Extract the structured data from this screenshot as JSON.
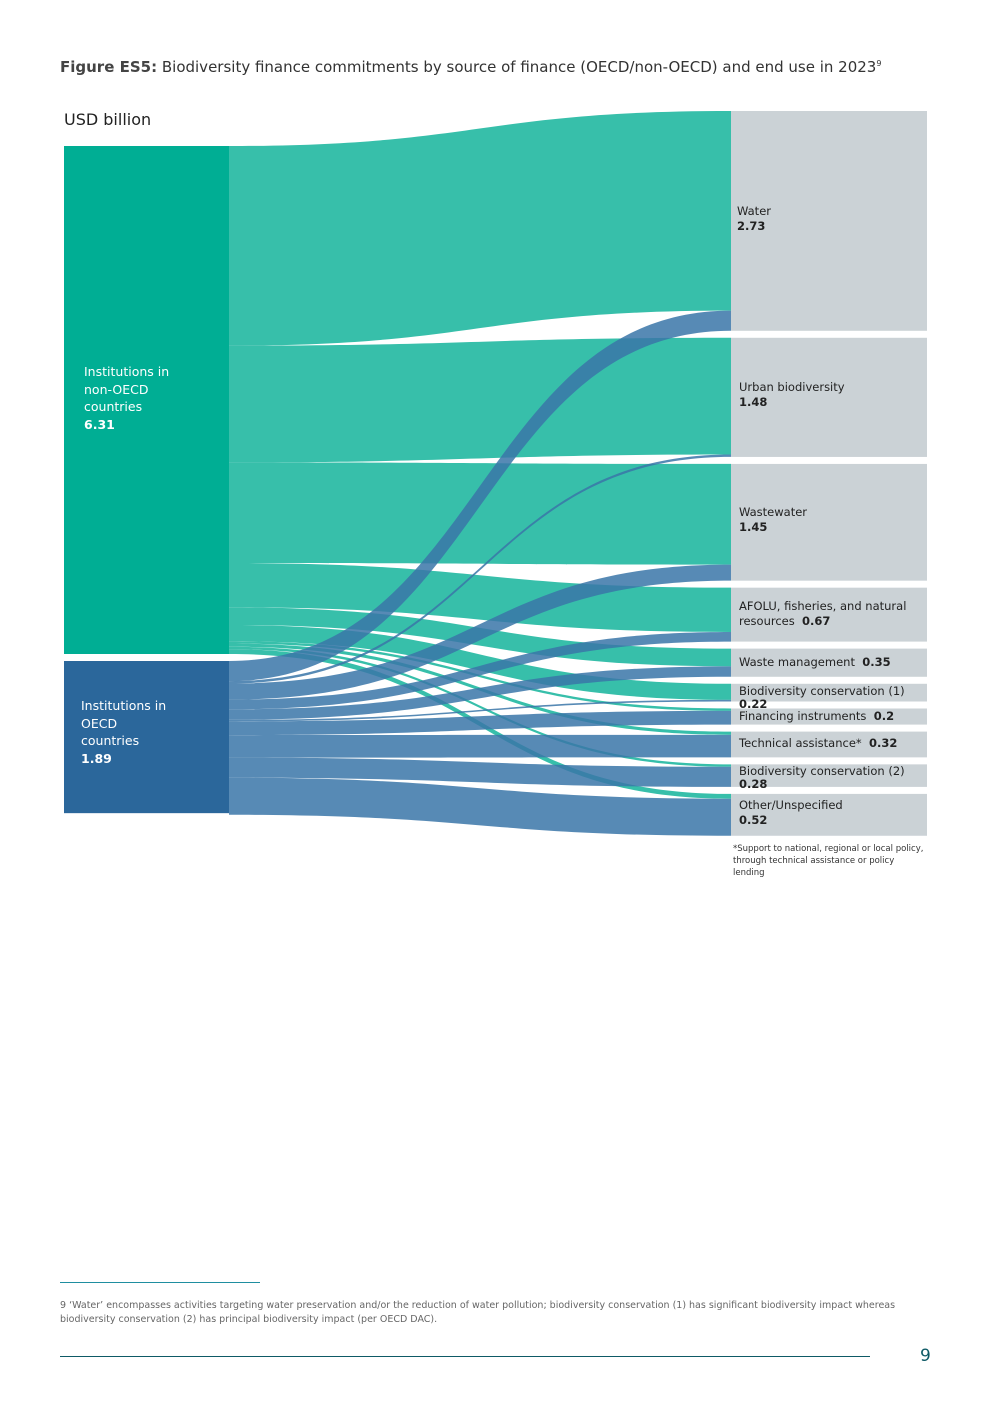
{
  "caption": {
    "label": "Figure ES5:",
    "text": " Biodiversity finance commitments by source of finance (OECD/non-OECD) and end use in 2023",
    "sup": "9"
  },
  "chart_data": {
    "type": "sankey",
    "unit_label": "USD billion",
    "colors": {
      "non_oecd_node": "#00ae94",
      "non_oecd_flow": "#37bfaa",
      "oecd_node": "#2b679b",
      "oecd_flow": "#3a75a8",
      "target_node": "#cbd2d6"
    },
    "sources": [
      {
        "id": "nonoecd",
        "label_lines": [
          "Institutions in",
          "non-OECD",
          "countries"
        ],
        "value": 6.31,
        "value_text": "6.31"
      },
      {
        "id": "oecd",
        "label_lines": [
          "Institutions in",
          "OECD",
          "countries"
        ],
        "value": 1.89,
        "value_text": "1.89"
      }
    ],
    "targets": [
      {
        "id": "water",
        "label": "Water",
        "value": 2.73,
        "value_text": "2.73",
        "layout": "stack"
      },
      {
        "id": "urban",
        "label": "Urban biodiversity",
        "value": 1.48,
        "value_text": "1.48",
        "layout": "stack"
      },
      {
        "id": "wastewater",
        "label": "Wastewater",
        "value": 1.45,
        "value_text": "1.45",
        "layout": "stack"
      },
      {
        "id": "afolu",
        "label": "AFOLU, fisheries, and natural resources",
        "value": 0.67,
        "value_text": "0.67",
        "layout": "afolu"
      },
      {
        "id": "waste",
        "label": "Waste management",
        "value": 0.35,
        "value_text": "0.35",
        "layout": "inline"
      },
      {
        "id": "bio1",
        "label": "Biodiversity conservation (1)",
        "value": 0.22,
        "value_text": "0.22",
        "layout": "stack"
      },
      {
        "id": "fin",
        "label": "Financing instruments",
        "value": 0.2,
        "value_text": "0.2",
        "layout": "inline"
      },
      {
        "id": "ta",
        "label": "Technical assistance*",
        "value": 0.32,
        "value_text": "0.32",
        "layout": "inline"
      },
      {
        "id": "bio2",
        "label": "Biodiversity conservation (2)",
        "value": 0.28,
        "value_text": "0.28",
        "layout": "stack"
      },
      {
        "id": "other",
        "label": "Other/Unspecified",
        "value": 0.52,
        "value_text": "0.52",
        "layout": "stack"
      }
    ],
    "links": [
      {
        "source": "nonoecd",
        "target": "water",
        "value": 2.48
      },
      {
        "source": "nonoecd",
        "target": "urban",
        "value": 1.45
      },
      {
        "source": "nonoecd",
        "target": "wastewater",
        "value": 1.25
      },
      {
        "source": "nonoecd",
        "target": "afolu",
        "value": 0.55
      },
      {
        "source": "nonoecd",
        "target": "waste",
        "value": 0.22
      },
      {
        "source": "nonoecd",
        "target": "bio1",
        "value": 0.2
      },
      {
        "source": "nonoecd",
        "target": "fin",
        "value": 0.03
      },
      {
        "source": "nonoecd",
        "target": "ta",
        "value": 0.04
      },
      {
        "source": "nonoecd",
        "target": "bio2",
        "value": 0.03
      },
      {
        "source": "nonoecd",
        "target": "other",
        "value": 0.06
      },
      {
        "source": "oecd",
        "target": "water",
        "value": 0.25
      },
      {
        "source": "oecd",
        "target": "urban",
        "value": 0.03
      },
      {
        "source": "oecd",
        "target": "wastewater",
        "value": 0.2
      },
      {
        "source": "oecd",
        "target": "afolu",
        "value": 0.12
      },
      {
        "source": "oecd",
        "target": "waste",
        "value": 0.13
      },
      {
        "source": "oecd",
        "target": "bio1",
        "value": 0.02
      },
      {
        "source": "oecd",
        "target": "fin",
        "value": 0.17
      },
      {
        "source": "oecd",
        "target": "ta",
        "value": 0.28
      },
      {
        "source": "oecd",
        "target": "bio2",
        "value": 0.25
      },
      {
        "source": "oecd",
        "target": "other",
        "value": 0.46
      }
    ]
  },
  "note": "*Support to national, regional or local policy, through technical assistance or policy lending",
  "footnote": "9  ‘Water’ encompasses activities targeting water preservation and/or the reduction of water pollution; biodiversity conservation (1) has significant biodiversity impact whereas biodiversity conservation (2) has principal biodiversity impact (per OECD DAC).",
  "page_number": "9"
}
